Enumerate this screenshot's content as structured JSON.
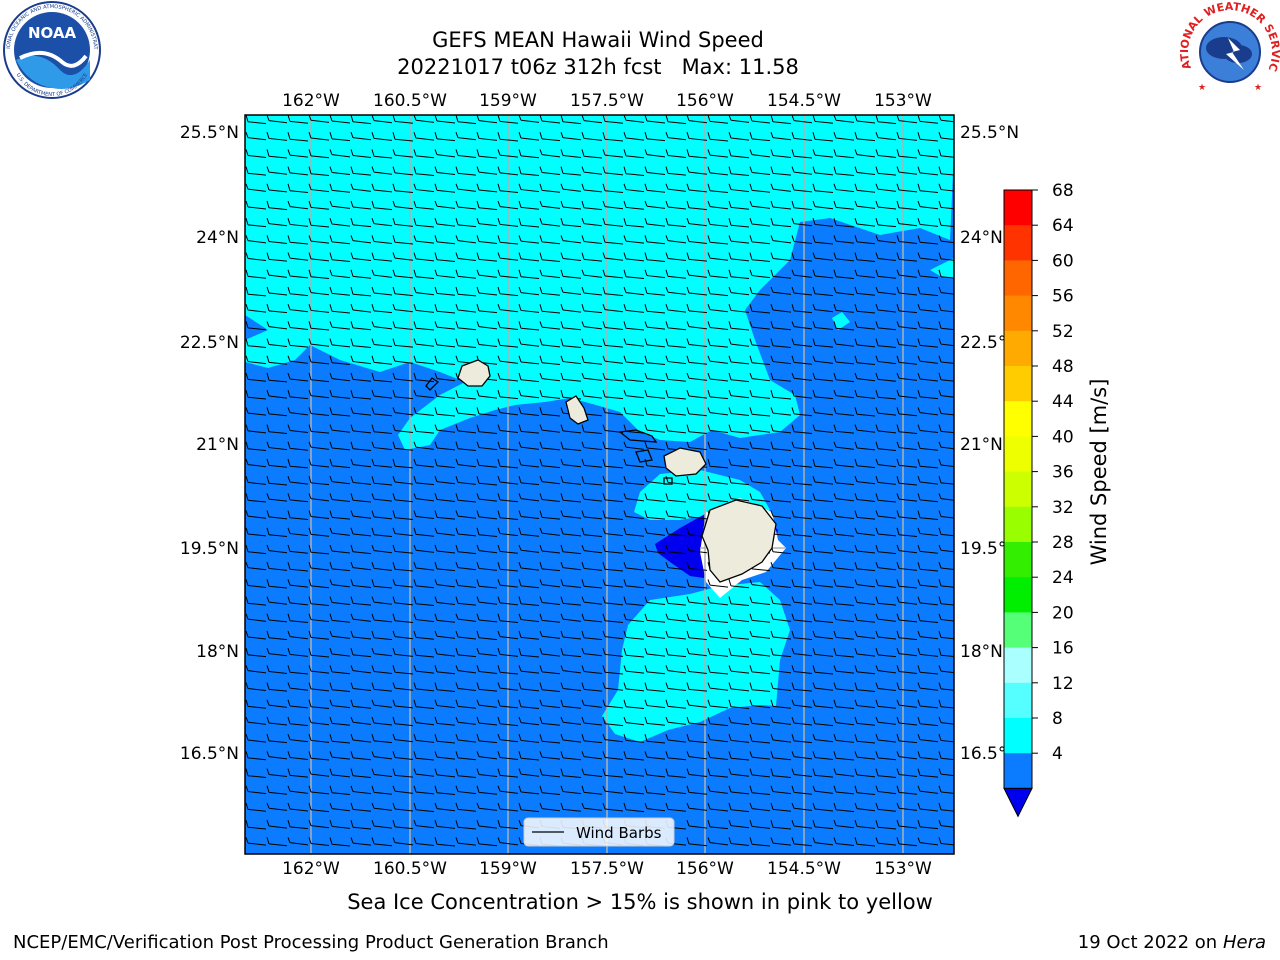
{
  "title": {
    "line1": "GEFS MEAN Hawaii Wind Speed",
    "line2": "20221017 t06z 312h fcst   Max: 11.58"
  },
  "logos": {
    "left": {
      "text": "NOAA",
      "ring_top": "NATIONAL OCEANIC AND ATMOSPHERIC ADMINISTRATION",
      "ring_bottom": "U.S. DEPARTMENT OF COMMERCE"
    },
    "right": {
      "ring": "NATIONAL WEATHER SERVICE"
    }
  },
  "map": {
    "lon_ticks": [
      "162°W",
      "160.5°W",
      "159°W",
      "157.5°W",
      "156°W",
      "154.5°W",
      "153°W"
    ],
    "lat_ticks": [
      "25.5°N",
      "24°N",
      "22.5°N",
      "21°N",
      "19.5°N",
      "18°N",
      "16.5°N"
    ],
    "legend_label": "Wind Barbs",
    "colors": {
      "calm_le4": "#0000ee",
      "band_4_8": "#0b7cff",
      "band_8_12": "#00ffff",
      "land": "#ecebdc",
      "gridline": "#b0b0b0"
    }
  },
  "colorbar": {
    "label": "Wind Speed [m/s]",
    "ticks": [
      "68",
      "64",
      "60",
      "56",
      "52",
      "48",
      "44",
      "40",
      "36",
      "32",
      "28",
      "24",
      "20",
      "16",
      "12",
      "8",
      "4"
    ],
    "colors": [
      "#ff0000",
      "#ff3300",
      "#ff6600",
      "#ff8800",
      "#ffaa00",
      "#ffcc00",
      "#ffff00",
      "#eeff00",
      "#ccff00",
      "#99ff00",
      "#33ee00",
      "#00ee00",
      "#55ff77",
      "#aaffff",
      "#55ffff",
      "#00ffff",
      "#0b7cff"
    ],
    "extend_color": "#0000ee"
  },
  "notes": {
    "sea_ice": "Sea Ice Concentration > 15% is shown in pink to yellow",
    "producer": "NCEP/EMC/Verification Post Processing Product Generation Branch",
    "date": "19 Oct 2022 on ",
    "machine": "Hera"
  }
}
